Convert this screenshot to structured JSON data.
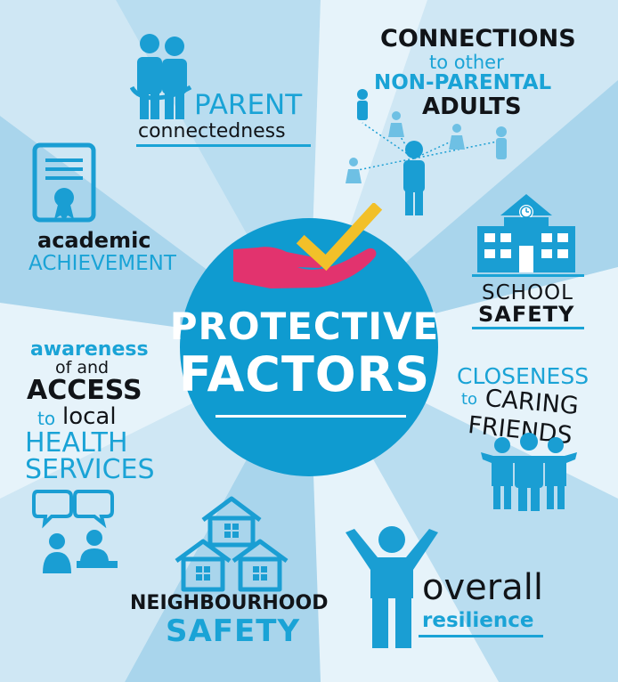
{
  "colors": {
    "circle": "#0f9bd0",
    "accent_blue": "#1aa3d6",
    "icon_blue": "#1a9ed3",
    "dark_text": "#111418",
    "hand": "#e2336e",
    "check": "#f2c029",
    "ray_light": "#e6f3fa",
    "ray_mid": "#cfe7f4",
    "ray_dark": "#a9d5ec"
  },
  "center": {
    "line1": "PROTECTIVE",
    "line2": "FACTORS",
    "icons": [
      "hand-icon",
      "checkmark-icon"
    ]
  },
  "factors": {
    "parent": {
      "line1": "PARENT",
      "line2": "connectedness",
      "icon": "parents-hug-icon"
    },
    "connections": {
      "line1": "CONNECTIONS",
      "line2": "to other",
      "line3": "NON-PARENTAL",
      "line4": "ADULTS",
      "icon": "people-network-icon"
    },
    "academic": {
      "line1": "academic",
      "line2": "ACHIEVEMENT",
      "icon": "certificate-icon"
    },
    "school": {
      "line1": "SCHOOL",
      "line2": "SAFETY",
      "icon": "school-building-icon"
    },
    "health": {
      "line1": "awareness",
      "line2": "of and",
      "line3": "ACCESS",
      "line4a": "to",
      "line4b": "local",
      "line5": "HEALTH",
      "line6": "SERVICES",
      "icon": "consultation-icon"
    },
    "friends": {
      "line1": "CLOSENESS",
      "line2a": "to",
      "line2b": "CARING",
      "line3": "FRIENDS",
      "icon": "friends-group-icon"
    },
    "neighbourhood": {
      "line1": "NEIGHBOURHOOD",
      "line2": "SAFETY",
      "icon": "houses-icon"
    },
    "resilience": {
      "line1": "overall",
      "line2": "resilience",
      "icon": "person-arms-up-icon"
    }
  }
}
